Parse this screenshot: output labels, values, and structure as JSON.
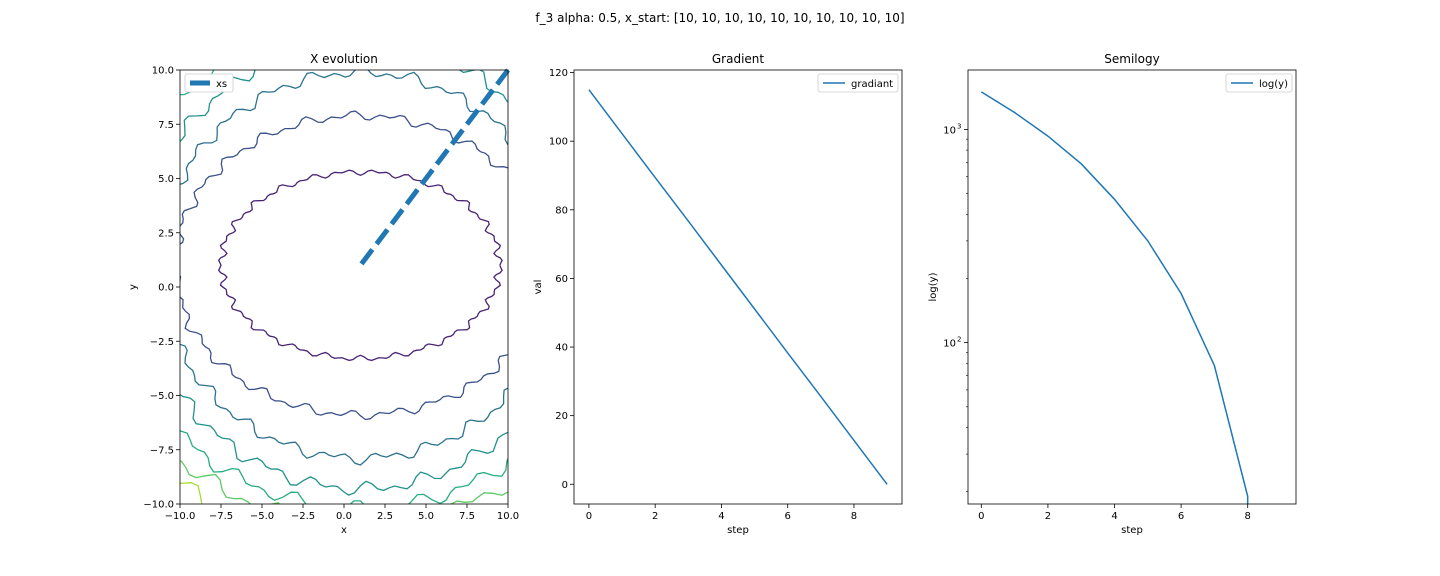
{
  "figure": {
    "suptitle": "f_3 alpha: 0.5, x_start: [10, 10, 10, 10, 10, 10, 10, 10, 10, 10]"
  },
  "chart_data": [
    {
      "type": "line",
      "subtype": "contour",
      "title": "X evolution",
      "xlabel": "x",
      "ylabel": "y",
      "xlim": [
        -10,
        10
      ],
      "ylim": [
        -10,
        10
      ],
      "xticks": [
        "−10.0",
        "−7.5",
        "−5.0",
        "−2.5",
        "0.0",
        "2.5",
        "5.0",
        "7.5",
        "10.0"
      ],
      "yticks": [
        "−10.0",
        "−7.5",
        "−5.0",
        "−2.5",
        "0.0",
        "2.5",
        "5.0",
        "7.5",
        "10.0"
      ],
      "legend": {
        "position": "upper left",
        "entries": [
          "xs"
        ]
      },
      "contour_center": [
        1.0,
        1.0
      ],
      "contour_levels": [
        {
          "a": 8.5,
          "b": 4.3,
          "color": "#482475"
        },
        {
          "a": 11.3,
          "b": 6.9,
          "color": "#3b528b"
        },
        {
          "a": 12.2,
          "b": 8.9,
          "color": "#2c728e"
        },
        {
          "a": 13.4,
          "b": 10.3,
          "color": "#21918c"
        },
        {
          "a": 15.3,
          "b": 11.2,
          "color": "#27ad81"
        },
        {
          "a": 16.8,
          "b": 11.9,
          "color": "#5ec962"
        },
        {
          "a": 18.0,
          "b": 12.7,
          "color": "#aadc32"
        }
      ],
      "series": [
        {
          "name": "xs",
          "color": "#1f77b4",
          "style": "dashed",
          "x": [
            10,
            5.5,
            3.25,
            2.125,
            1.5625,
            1.28,
            1.14,
            1.07,
            1.035,
            1.0
          ],
          "y": [
            10,
            5.5,
            3.25,
            2.125,
            1.5625,
            1.28,
            1.14,
            1.07,
            1.035,
            1.0
          ]
        }
      ]
    },
    {
      "type": "line",
      "title": "Gradient",
      "xlabel": "step",
      "ylabel": "val",
      "xlim": [
        -0.45,
        9.45
      ],
      "ylim": [
        -5.75,
        120.75
      ],
      "xticks": [
        0,
        2,
        4,
        6,
        8
      ],
      "yticks": [
        0,
        20,
        40,
        60,
        80,
        100,
        120
      ],
      "legend": {
        "position": "upper right",
        "entries": [
          "gradiant"
        ]
      },
      "series": [
        {
          "name": "gradiant",
          "color": "#1f77b4",
          "x": [
            0,
            1,
            2,
            3,
            4,
            5,
            6,
            7,
            8,
            9
          ],
          "y": [
            115,
            102.2,
            89.4,
            76.7,
            63.9,
            51.1,
            38.3,
            25.6,
            12.8,
            0
          ]
        }
      ]
    },
    {
      "type": "line",
      "title": "Semilogy",
      "xlabel": "step",
      "ylabel": "log(y)",
      "xlim": [
        -0.4,
        9.45
      ],
      "ylim": [
        17.5,
        1900
      ],
      "yscale": "log",
      "xticks": [
        0,
        2,
        4,
        6,
        8
      ],
      "yticks": [
        {
          "value": 100,
          "label": "10",
          "exp": "2"
        },
        {
          "value": 1000,
          "label": "10",
          "exp": "3"
        }
      ],
      "legend": {
        "position": "upper right",
        "entries": [
          "log(y)"
        ]
      },
      "series": [
        {
          "name": "log(y)",
          "color": "#1f77b4",
          "x": [
            0,
            1,
            2,
            3,
            4,
            5,
            6,
            7,
            8,
            8
          ],
          "y": [
            1500,
            1200,
            930,
            690,
            470,
            300,
            170,
            78,
            19,
            17.5
          ]
        }
      ]
    }
  ]
}
